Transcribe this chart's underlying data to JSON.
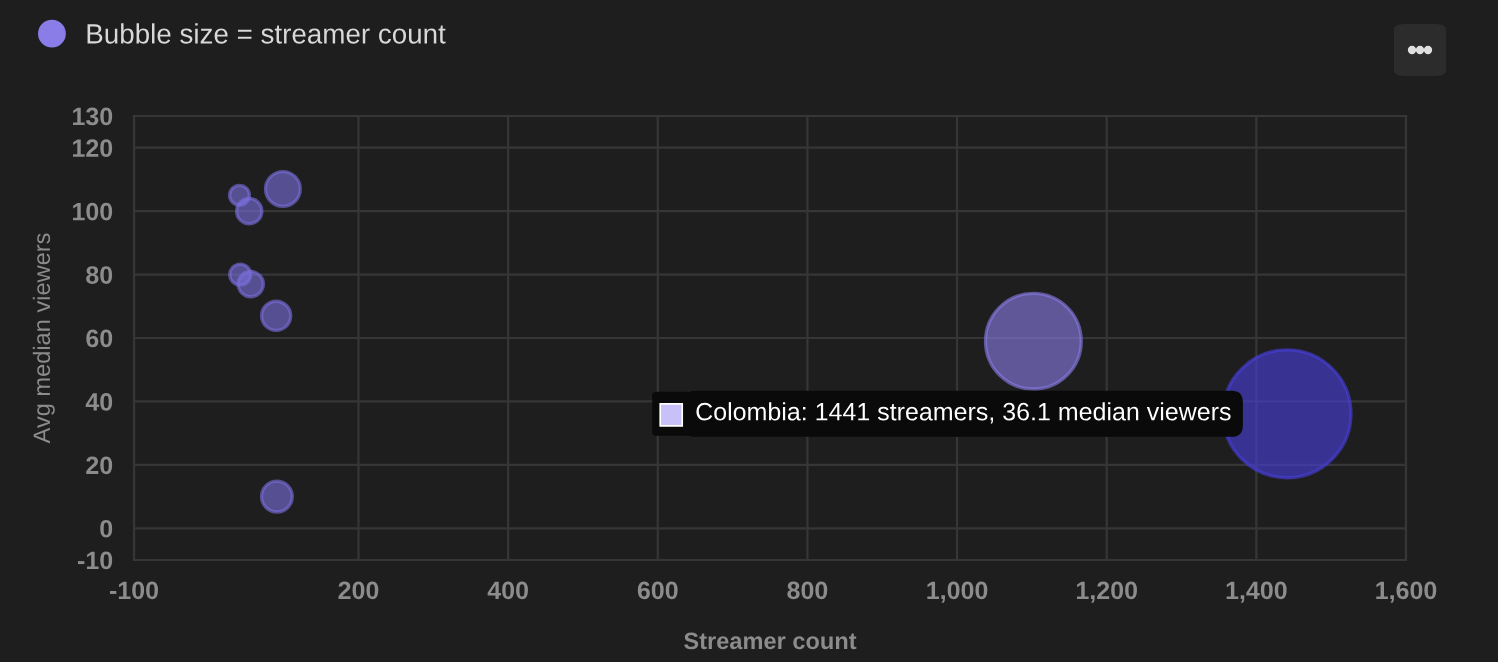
{
  "chart_data": {
    "type": "bubble",
    "xlabel": "Streamer count",
    "ylabel": "Avg median viewers",
    "x": [
      41,
      54,
      99,
      42,
      56,
      90,
      91,
      1102,
      1441
    ],
    "series": [
      {
        "name": "Bubble size = streamer count",
        "color": "#8a7de8",
        "colors": [
          "#7b6fe0",
          "#7b6fe0",
          "#7b6fe0",
          "#7b6fe0",
          "#7b6fe0",
          "#7b6fe0",
          "#7b6fe0",
          "#8a7de8",
          "#4a3fe0"
        ],
        "values": [
          105,
          100,
          107,
          80,
          77,
          67,
          10,
          59,
          36.1
        ],
        "sizes": [
          0.024,
          0.039,
          0.074,
          0.027,
          0.039,
          0.052,
          0.058,
          0.56,
          1
        ]
      }
    ],
    "xlim": [
      -100,
      1600
    ],
    "xticks": [
      -100,
      200,
      400,
      600,
      800,
      {
        "value": 1000,
        "label": "1,000"
      },
      {
        "value": 1200,
        "label": "1,200"
      },
      {
        "value": 1400,
        "label": "1,400"
      },
      {
        "value": 1600,
        "label": "1,600"
      }
    ],
    "ylim": [
      -10,
      130
    ],
    "yticks": [
      -10,
      0,
      20,
      40,
      60,
      80,
      100,
      120,
      130
    ],
    "grid": true,
    "legend": "top left",
    "annotations": [
      {
        "text": "Colombia: 1441 streamers, 36.1 median viewers",
        "x": 1441,
        "y": 36.1
      }
    ]
  }
}
